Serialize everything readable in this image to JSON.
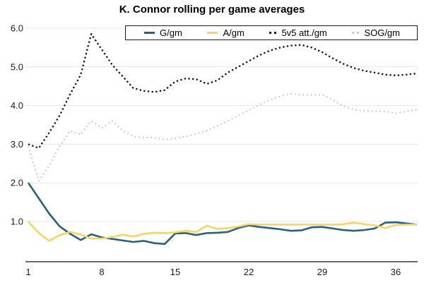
{
  "title": "K. Connor rolling per game averages",
  "colors": {
    "g_line": "#27617E",
    "a_line": "#F9D55F",
    "att_line": "#141414",
    "sog_line": "#C8C8C8",
    "grid": "#E7E7E7",
    "axis": "#6B6B6B",
    "tick_text": "#1A1A1A",
    "background": "#FFFFFF",
    "legend_border": "#1A1A1A"
  },
  "legend": {
    "items": [
      {
        "label": "G/gm",
        "swatch": "solid",
        "color": "#27617E"
      },
      {
        "label": "A/gm",
        "swatch": "solid",
        "color": "#F9D55F"
      },
      {
        "label": "5v5 att./gm",
        "swatch": "dotted",
        "color": "#141414"
      },
      {
        "label": "SOG/gm",
        "swatch": "dotted",
        "color": "#C8C8C8"
      }
    ]
  },
  "chart_data": {
    "type": "line",
    "title": "K. Connor rolling per game averages",
    "xlabel": "",
    "ylabel": "",
    "xticks": [
      1,
      8,
      15,
      22,
      29,
      36
    ],
    "yticks": [
      "6.0",
      "5.0",
      "4.0",
      "3.0",
      "2.0",
      "1.0"
    ],
    "xlim": [
      1,
      38
    ],
    "ylim": [
      0.0,
      6.1
    ],
    "grid": "horizontal",
    "legend_position": "top",
    "x": [
      1,
      2,
      3,
      4,
      5,
      6,
      7,
      8,
      9,
      10,
      11,
      12,
      13,
      14,
      15,
      16,
      17,
      18,
      19,
      20,
      21,
      22,
      23,
      24,
      25,
      26,
      27,
      28,
      29,
      30,
      31,
      32,
      33,
      34,
      35,
      36,
      37,
      38
    ],
    "series": [
      {
        "name": "G/gm",
        "style": "solid",
        "color": "#27617E",
        "width": 2.6,
        "dash": "",
        "values": [
          2.0,
          1.6,
          1.2,
          0.87,
          0.68,
          0.52,
          0.67,
          0.59,
          0.55,
          0.51,
          0.47,
          0.5,
          0.44,
          0.42,
          0.69,
          0.7,
          0.65,
          0.7,
          0.71,
          0.73,
          0.83,
          0.9,
          0.86,
          0.83,
          0.8,
          0.76,
          0.77,
          0.85,
          0.86,
          0.82,
          0.78,
          0.76,
          0.78,
          0.82,
          0.97,
          0.98,
          0.95,
          0.92
        ]
      },
      {
        "name": "A/gm",
        "style": "solid",
        "color": "#F9D55F",
        "width": 2.6,
        "dash": "",
        "values": [
          1.0,
          0.7,
          0.5,
          0.65,
          0.73,
          0.66,
          0.56,
          0.56,
          0.6,
          0.66,
          0.61,
          0.68,
          0.71,
          0.7,
          0.72,
          0.76,
          0.73,
          0.89,
          0.81,
          0.83,
          0.87,
          0.93,
          0.92,
          0.92,
          0.92,
          0.92,
          0.92,
          0.92,
          0.92,
          0.92,
          0.93,
          0.97,
          0.93,
          0.9,
          0.83,
          0.91,
          0.92,
          0.92
        ]
      },
      {
        "name": "5v5 att./gm",
        "style": "dotted",
        "color": "#141414",
        "width": 2.3,
        "dash": "2.3 3.4",
        "values": [
          3.0,
          2.9,
          3.3,
          3.75,
          4.3,
          4.8,
          5.85,
          5.45,
          5.05,
          4.75,
          4.45,
          4.38,
          4.35,
          4.4,
          4.62,
          4.7,
          4.68,
          4.56,
          4.65,
          4.85,
          5.0,
          5.15,
          5.3,
          5.42,
          5.5,
          5.55,
          5.57,
          5.5,
          5.38,
          5.22,
          5.08,
          4.97,
          4.9,
          4.85,
          4.8,
          4.78,
          4.8,
          4.83
        ]
      },
      {
        "name": "SOG/gm",
        "style": "dotted",
        "color": "#C8C8C8",
        "width": 2.0,
        "dash": "1.9 3.8",
        "values": [
          2.95,
          2.05,
          2.45,
          2.95,
          3.35,
          3.25,
          3.6,
          3.42,
          3.6,
          3.35,
          3.2,
          3.17,
          3.17,
          3.12,
          3.15,
          3.2,
          3.27,
          3.35,
          3.47,
          3.6,
          3.74,
          3.88,
          4.02,
          4.14,
          4.24,
          4.3,
          4.28,
          4.27,
          4.28,
          4.15,
          3.98,
          3.9,
          3.86,
          3.85,
          3.85,
          3.8,
          3.85,
          3.9
        ]
      }
    ]
  }
}
